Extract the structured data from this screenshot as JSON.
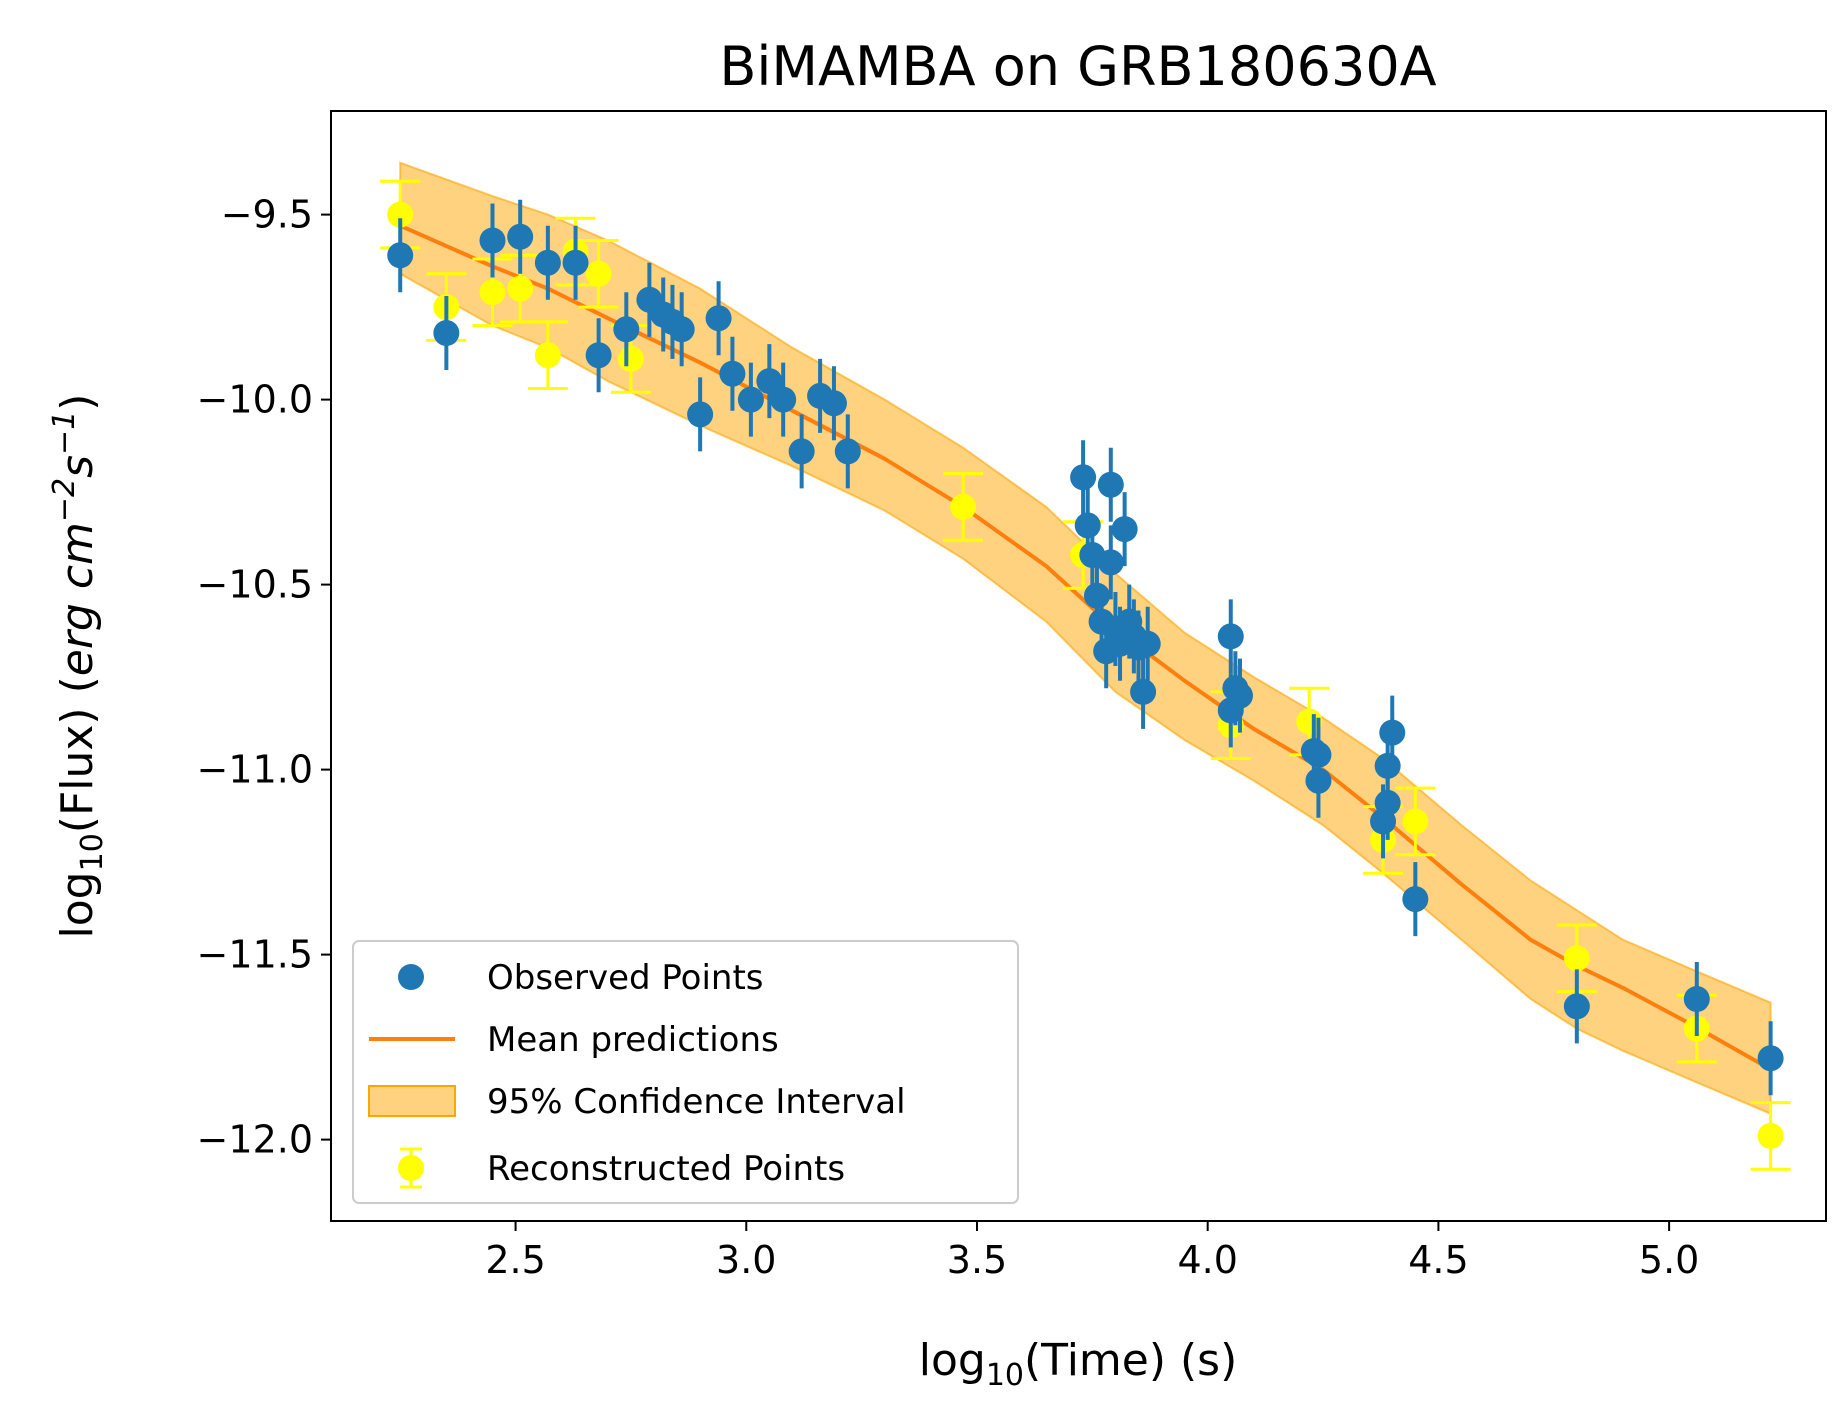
{
  "chart_data": {
    "type": "scatter",
    "title": "BiMAMBA on GRB180630A",
    "xlabel": "log10(Time) (s)",
    "xlabel_base": "log",
    "xlabel_sub": "10",
    "xlabel_rest": "(Time) (s)",
    "ylabel": "log10(Flux) (erg cm^-2 s^-1)",
    "ylabel_base": "log",
    "ylabel_sub": "10",
    "ylabel_mid": "(Flux) (",
    "ylabel_erg": "erg cm",
    "ylabel_exp1": "−2",
    "ylabel_s": "s",
    "ylabel_exp2": "−1",
    "ylabel_close": ")",
    "xlim": [
      2.1,
      5.34
    ],
    "ylim": [
      -12.22,
      -9.22
    ],
    "x_ticks": [
      2.5,
      3.0,
      3.5,
      4.0,
      4.5,
      5.0
    ],
    "x_tick_labels": [
      "2.5",
      "3.0",
      "3.5",
      "4.0",
      "4.5",
      "5.0"
    ],
    "y_ticks": [
      -9.5,
      -10.0,
      -10.5,
      -11.0,
      -11.5,
      -12.0
    ],
    "y_tick_labels": [
      "−9.5",
      "−10.0",
      "−10.5",
      "−11.0",
      "−11.5",
      "−12.0"
    ],
    "legend_position": "lower-left",
    "colors": {
      "observed": "#1f77b4",
      "mean": "#ff7f0e",
      "band_fill": "#ffa500",
      "band_fill_opacity": 0.5,
      "reconstructed": "#ffff00"
    },
    "series": [
      {
        "name": "Observed Points",
        "kind": "scatter_errorbar",
        "x": [
          2.25,
          2.35,
          2.45,
          2.51,
          2.57,
          2.63,
          2.68,
          2.74,
          2.79,
          2.82,
          2.84,
          2.86,
          2.9,
          2.94,
          2.97,
          3.01,
          3.05,
          3.08,
          3.12,
          3.16,
          3.19,
          3.22,
          3.73,
          3.74,
          3.75,
          3.76,
          3.77,
          3.78,
          3.79,
          3.79,
          3.8,
          3.81,
          3.82,
          3.83,
          3.84,
          3.85,
          3.86,
          3.87,
          4.05,
          4.05,
          4.06,
          4.07,
          4.23,
          4.24,
          4.24,
          4.38,
          4.39,
          4.39,
          4.4,
          4.45,
          4.8,
          5.06,
          5.22
        ],
        "y": [
          -9.61,
          -9.82,
          -9.57,
          -9.56,
          -9.63,
          -9.63,
          -9.88,
          -9.81,
          -9.73,
          -9.77,
          -9.79,
          -9.81,
          -10.04,
          -9.78,
          -9.93,
          -10.0,
          -9.95,
          -10.0,
          -10.14,
          -9.99,
          -10.01,
          -10.14,
          -10.21,
          -10.34,
          -10.42,
          -10.53,
          -10.6,
          -10.68,
          -10.23,
          -10.44,
          -10.62,
          -10.66,
          -10.35,
          -10.6,
          -10.64,
          -10.67,
          -10.79,
          -10.66,
          -10.64,
          -10.84,
          -10.78,
          -10.8,
          -10.95,
          -10.96,
          -11.03,
          -11.14,
          -10.99,
          -11.09,
          -10.9,
          -11.35,
          -11.64,
          -11.62,
          -11.78
        ],
        "yerr": 0.1
      },
      {
        "name": "Mean predictions",
        "kind": "line",
        "x": [
          2.25,
          2.45,
          2.57,
          2.7,
          2.9,
          3.1,
          3.3,
          3.47,
          3.65,
          3.8,
          3.95,
          4.1,
          4.25,
          4.38,
          4.55,
          4.7,
          4.8,
          4.9,
          5.05,
          5.22
        ],
        "y": [
          -9.53,
          -9.64,
          -9.7,
          -9.78,
          -9.9,
          -10.03,
          -10.16,
          -10.29,
          -10.45,
          -10.62,
          -10.76,
          -10.89,
          -11.0,
          -11.13,
          -11.31,
          -11.46,
          -11.53,
          -11.59,
          -11.69,
          -11.81
        ]
      },
      {
        "name": "95% Confidence Interval",
        "kind": "band",
        "x": [
          2.25,
          2.45,
          2.57,
          2.7,
          2.9,
          3.1,
          3.3,
          3.47,
          3.65,
          3.8,
          3.95,
          4.1,
          4.25,
          4.38,
          4.55,
          4.7,
          4.8,
          4.9,
          5.05,
          5.22
        ],
        "lower": [
          -9.66,
          -9.8,
          -9.86,
          -9.95,
          -10.07,
          -10.18,
          -10.3,
          -10.43,
          -10.6,
          -10.79,
          -10.92,
          -11.03,
          -11.15,
          -11.28,
          -11.46,
          -11.62,
          -11.7,
          -11.76,
          -11.84,
          -11.93
        ],
        "upper": [
          -9.36,
          -9.45,
          -9.5,
          -9.57,
          -9.7,
          -9.86,
          -10.0,
          -10.13,
          -10.29,
          -10.47,
          -10.63,
          -10.75,
          -10.86,
          -10.97,
          -11.15,
          -11.3,
          -11.38,
          -11.46,
          -11.54,
          -11.63
        ]
      },
      {
        "name": "Reconstructed Points",
        "kind": "scatter_errorbar",
        "x": [
          2.25,
          2.35,
          2.45,
          2.51,
          2.57,
          2.63,
          2.68,
          2.75,
          3.47,
          3.73,
          4.05,
          4.22,
          4.38,
          4.45,
          4.8,
          5.06,
          5.22
        ],
        "y": [
          -9.5,
          -9.75,
          -9.71,
          -9.7,
          -9.88,
          -9.6,
          -9.66,
          -9.89,
          -10.29,
          -10.42,
          -10.88,
          -10.87,
          -11.19,
          -11.14,
          -11.51,
          -11.7,
          -11.99
        ],
        "yerr": 0.09
      }
    ],
    "legend": [
      "Observed Points",
      "Mean predictions",
      "95% Confidence Interval",
      "Reconstructed Points"
    ]
  }
}
